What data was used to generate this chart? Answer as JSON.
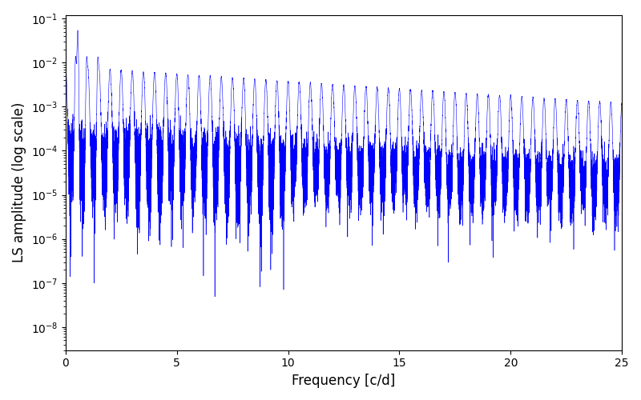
{
  "xlabel": "Frequency [c/d]",
  "ylabel": "LS amplitude (log scale)",
  "line_color": "#0000ff",
  "xlim": [
    0,
    25
  ],
  "ylim": [
    3e-09,
    0.12
  ],
  "background_color": "#ffffff",
  "figsize": [
    8.0,
    5.0
  ],
  "dpi": 100,
  "freq_max": 25.0,
  "n_points": 15000,
  "seed": 12345,
  "linewidth": 0.4
}
